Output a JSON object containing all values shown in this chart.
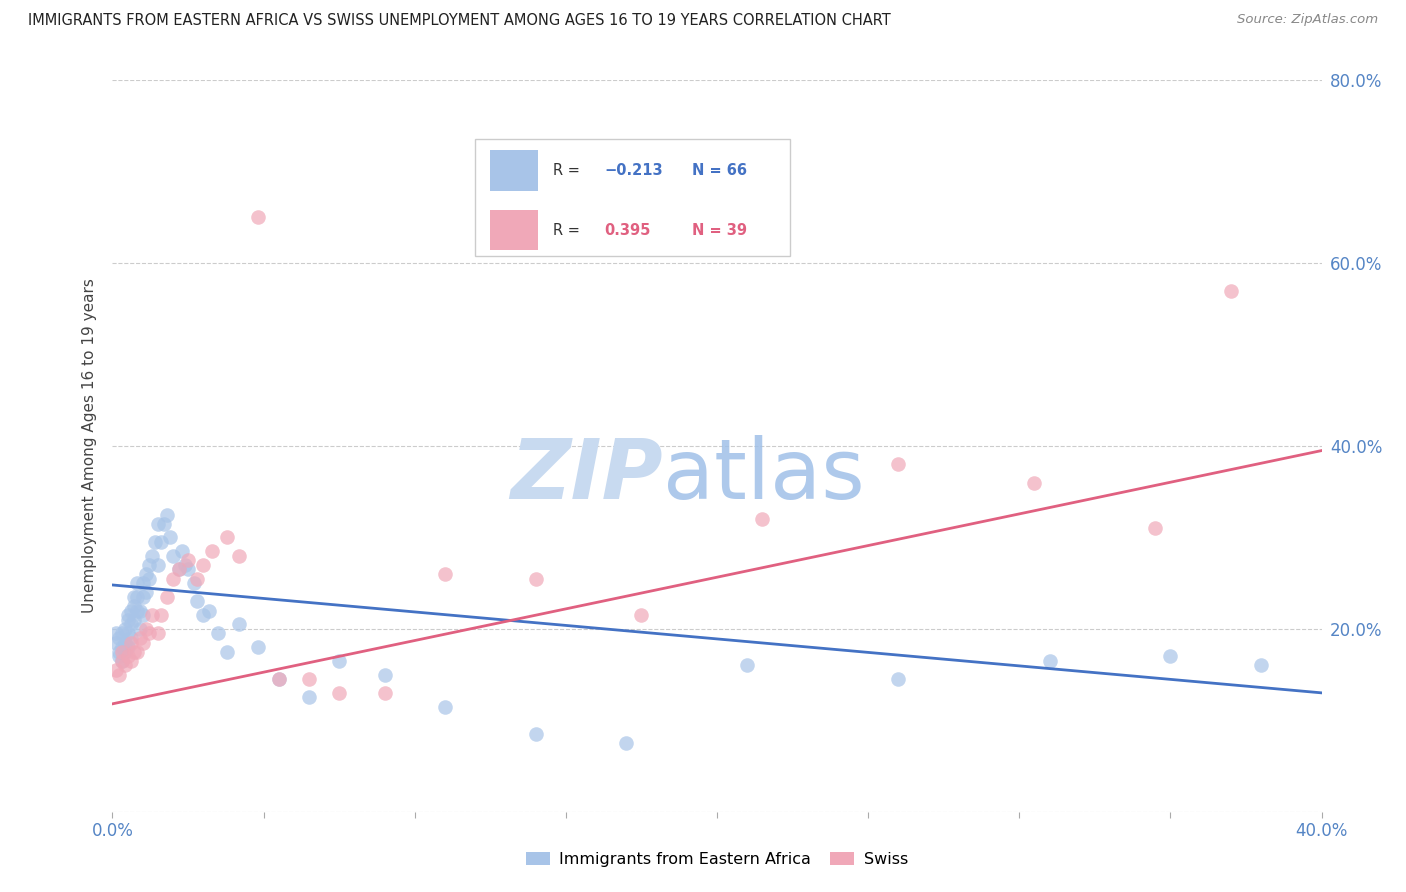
{
  "title": "IMMIGRANTS FROM EASTERN AFRICA VS SWISS UNEMPLOYMENT AMONG AGES 16 TO 19 YEARS CORRELATION CHART",
  "source": "Source: ZipAtlas.com",
  "ylabel": "Unemployment Among Ages 16 to 19 years",
  "legend_blue_label": "Immigrants from Eastern Africa",
  "legend_pink_label": "Swiss",
  "blue_color": "#a8c4e8",
  "pink_color": "#f0a8b8",
  "blue_line_color": "#4472c4",
  "pink_line_color": "#e06080",
  "title_color": "#222222",
  "source_color": "#888888",
  "tick_color": "#5585c5",
  "ylabel_color": "#444444",
  "grid_color": "#cccccc",
  "watermark_zip_color": "#c8daf0",
  "watermark_atlas_color": "#a0c0e8",
  "blue_scatter_x": [
    0.001,
    0.001,
    0.002,
    0.002,
    0.002,
    0.003,
    0.003,
    0.003,
    0.004,
    0.004,
    0.004,
    0.005,
    0.005,
    0.005,
    0.005,
    0.006,
    0.006,
    0.006,
    0.007,
    0.007,
    0.007,
    0.008,
    0.008,
    0.008,
    0.009,
    0.009,
    0.01,
    0.01,
    0.01,
    0.011,
    0.011,
    0.012,
    0.012,
    0.013,
    0.014,
    0.015,
    0.015,
    0.016,
    0.017,
    0.018,
    0.019,
    0.02,
    0.022,
    0.023,
    0.024,
    0.025,
    0.027,
    0.028,
    0.03,
    0.032,
    0.035,
    0.038,
    0.042,
    0.048,
    0.055,
    0.065,
    0.075,
    0.09,
    0.11,
    0.14,
    0.17,
    0.21,
    0.26,
    0.31,
    0.35,
    0.38
  ],
  "blue_scatter_y": [
    0.185,
    0.195,
    0.17,
    0.19,
    0.175,
    0.18,
    0.195,
    0.165,
    0.2,
    0.185,
    0.175,
    0.215,
    0.195,
    0.21,
    0.18,
    0.205,
    0.22,
    0.19,
    0.225,
    0.21,
    0.235,
    0.22,
    0.235,
    0.25,
    0.22,
    0.2,
    0.235,
    0.25,
    0.215,
    0.26,
    0.24,
    0.27,
    0.255,
    0.28,
    0.295,
    0.315,
    0.27,
    0.295,
    0.315,
    0.325,
    0.3,
    0.28,
    0.265,
    0.285,
    0.27,
    0.265,
    0.25,
    0.23,
    0.215,
    0.22,
    0.195,
    0.175,
    0.205,
    0.18,
    0.145,
    0.125,
    0.165,
    0.15,
    0.115,
    0.085,
    0.075,
    0.16,
    0.145,
    0.165,
    0.17,
    0.16
  ],
  "pink_scatter_x": [
    0.001,
    0.002,
    0.003,
    0.003,
    0.004,
    0.005,
    0.006,
    0.006,
    0.007,
    0.008,
    0.009,
    0.01,
    0.011,
    0.012,
    0.013,
    0.015,
    0.016,
    0.018,
    0.02,
    0.022,
    0.025,
    0.028,
    0.03,
    0.033,
    0.038,
    0.042,
    0.048,
    0.055,
    0.065,
    0.075,
    0.09,
    0.11,
    0.14,
    0.175,
    0.215,
    0.26,
    0.305,
    0.345,
    0.37
  ],
  "pink_scatter_y": [
    0.155,
    0.15,
    0.165,
    0.175,
    0.16,
    0.17,
    0.165,
    0.185,
    0.175,
    0.175,
    0.19,
    0.185,
    0.2,
    0.195,
    0.215,
    0.195,
    0.215,
    0.235,
    0.255,
    0.265,
    0.275,
    0.255,
    0.27,
    0.285,
    0.3,
    0.28,
    0.65,
    0.145,
    0.145,
    0.13,
    0.13,
    0.26,
    0.255,
    0.215,
    0.32,
    0.38,
    0.36,
    0.31,
    0.57
  ],
  "xlim": [
    0.0,
    0.4
  ],
  "ylim": [
    0.0,
    0.8
  ],
  "blue_line_x0": 0.0,
  "blue_line_x1": 0.4,
  "blue_line_y0": 0.248,
  "blue_line_y1": 0.13,
  "pink_line_x0": 0.0,
  "pink_line_x1": 0.4,
  "pink_line_y0": 0.118,
  "pink_line_y1": 0.395,
  "xticks": [
    0.0,
    0.05,
    0.1,
    0.15,
    0.2,
    0.25,
    0.3,
    0.35,
    0.4
  ],
  "yticks": [
    0.0,
    0.2,
    0.4,
    0.6,
    0.8
  ],
  "right_yticklabels": [
    "",
    "20.0%",
    "40.0%",
    "60.0%",
    "80.0%"
  ]
}
